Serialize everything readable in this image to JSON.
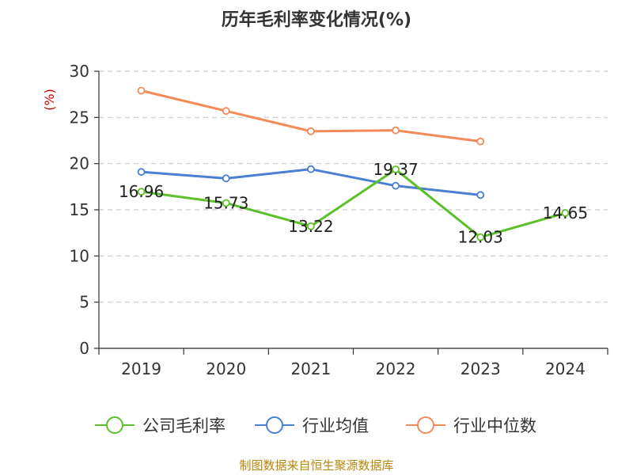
{
  "chart_data": {
    "type": "line",
    "title": "历年毛利率变化情况(%)",
    "unit": "(%)",
    "categories": [
      "2019",
      "2020",
      "2021",
      "2022",
      "2023",
      "2024"
    ],
    "ylim": [
      0,
      30
    ],
    "yticks": [
      0,
      5,
      10,
      15,
      20,
      25,
      30
    ],
    "grid": true,
    "legend_position": "bottom",
    "series": [
      {
        "name": "公司毛利率",
        "color": "#5cc02a",
        "values": [
          16.96,
          15.73,
          13.22,
          19.37,
          12.03,
          14.65
        ],
        "labels": [
          "16.96",
          "15.73",
          "13.22",
          "19.37",
          "12.03",
          "14.65"
        ]
      },
      {
        "name": "行业均值",
        "color": "#4a7fd4",
        "values": [
          19.1,
          18.4,
          19.4,
          17.6,
          16.6,
          null
        ]
      },
      {
        "name": "行业中位数",
        "color": "#f48a57",
        "values": [
          27.9,
          25.7,
          23.5,
          23.6,
          22.4,
          null
        ]
      }
    ]
  },
  "source": "制图数据来自恒生聚源数据库"
}
